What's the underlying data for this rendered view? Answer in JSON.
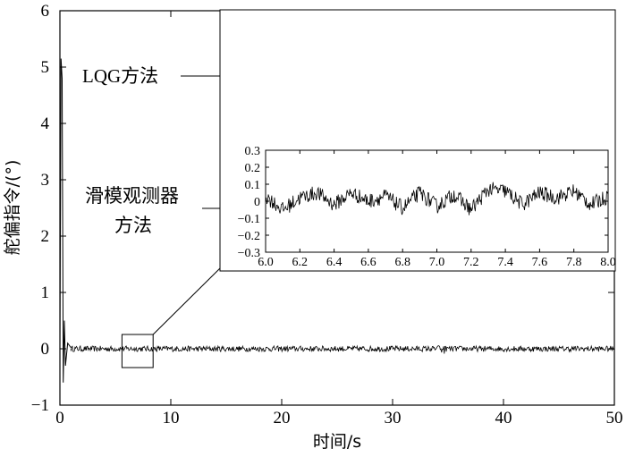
{
  "chart_data": [
    {
      "type": "line",
      "xlabel": "时间/s",
      "ylabel": "舵偏指令/(°)",
      "xlim": [
        0,
        50
      ],
      "ylim": [
        -1,
        6
      ],
      "xticks": [
        0,
        10,
        20,
        30,
        40,
        50
      ],
      "yticks": [
        -1,
        0,
        1,
        2,
        3,
        4,
        5,
        6
      ],
      "annotations": [
        "LQG方法",
        "滑模观测器",
        "方法"
      ],
      "zoom_box_x": [
        6,
        8
      ],
      "zoom_box_y": [
        -0.3,
        0.3
      ],
      "series": [
        {
          "x": [
            0,
            0.1,
            0.2,
            0.3,
            0.4,
            0.5,
            0.7,
            1,
            2,
            5,
            10,
            20,
            30,
            34,
            34.4,
            40,
            50
          ],
          "y": [
            0,
            5.15,
            4.8,
            -0.6,
            0.5,
            -0.3,
            0.1,
            0.02,
            0,
            0,
            0,
            0,
            0,
            0,
            0.1,
            0,
            0
          ]
        }
      ]
    },
    {
      "type": "line",
      "xlim": [
        6.0,
        8.0
      ],
      "ylim": [
        -0.3,
        0.3
      ],
      "xticks": [
        6.0,
        6.2,
        6.4,
        6.6,
        6.8,
        7.0,
        7.2,
        7.4,
        7.6,
        7.8,
        8.0
      ],
      "yticks": [
        -0.3,
        -0.2,
        -0.1,
        0,
        0.1,
        0.2,
        0.3
      ],
      "series": [
        {
          "name": "LQG方法",
          "x": [
            6.0,
            6.05,
            6.1,
            6.15,
            6.2,
            6.25,
            6.3,
            6.35,
            6.4,
            6.45,
            6.5,
            6.55,
            6.6,
            6.65,
            6.7,
            6.75,
            6.8,
            6.85,
            6.9,
            6.95,
            7.0,
            7.05,
            7.1,
            7.15,
            7.2,
            7.25,
            7.3,
            7.35,
            7.4,
            7.45,
            7.5,
            7.55,
            7.6,
            7.65,
            7.7,
            7.75,
            7.8,
            7.85,
            7.9,
            7.95,
            8.0
          ],
          "y": [
            0.1,
            -0.12,
            0.0,
            0.12,
            -0.05,
            -0.1,
            0.07,
            -0.07,
            0.05,
            -0.05,
            0.06,
            -0.09,
            0.09,
            -0.07,
            0.09,
            -0.04,
            -0.02,
            0.02,
            -0.02,
            0.0,
            -0.04,
            0.04,
            0.06,
            -0.08,
            0.12,
            -0.13,
            0.13,
            -0.12,
            0.14,
            -0.1,
            0.1,
            -0.06,
            0.06,
            -0.06,
            0.02,
            0.01,
            0.03,
            0.0,
            -0.01,
            0.03,
            -0.02
          ]
        }
      ]
    },
    {
      "type": "line",
      "xlim": [
        6.0,
        8.0
      ],
      "ylim": [
        -0.3,
        0.3
      ],
      "xticks": [
        6.0,
        6.2,
        6.4,
        6.6,
        6.8,
        7.0,
        7.2,
        7.4,
        7.6,
        7.8,
        8.0
      ],
      "yticks": [
        -0.3,
        -0.2,
        -0.1,
        0,
        0.1,
        0.2,
        0.3
      ],
      "series": [
        {
          "name": "滑模观测器方法",
          "x": [
            6.0,
            6.1,
            6.2,
            6.3,
            6.4,
            6.5,
            6.6,
            6.7,
            6.8,
            6.9,
            7.0,
            7.1,
            7.2,
            7.3,
            7.4,
            7.5,
            7.6,
            7.7,
            7.8,
            7.9,
            8.0
          ],
          "y": [
            0.03,
            -0.05,
            0.02,
            0.05,
            -0.02,
            0.05,
            0.0,
            0.03,
            -0.04,
            0.05,
            -0.03,
            0.04,
            -0.05,
            0.07,
            0.06,
            -0.02,
            0.05,
            0.02,
            0.06,
            -0.02,
            0.03
          ]
        }
      ]
    }
  ]
}
